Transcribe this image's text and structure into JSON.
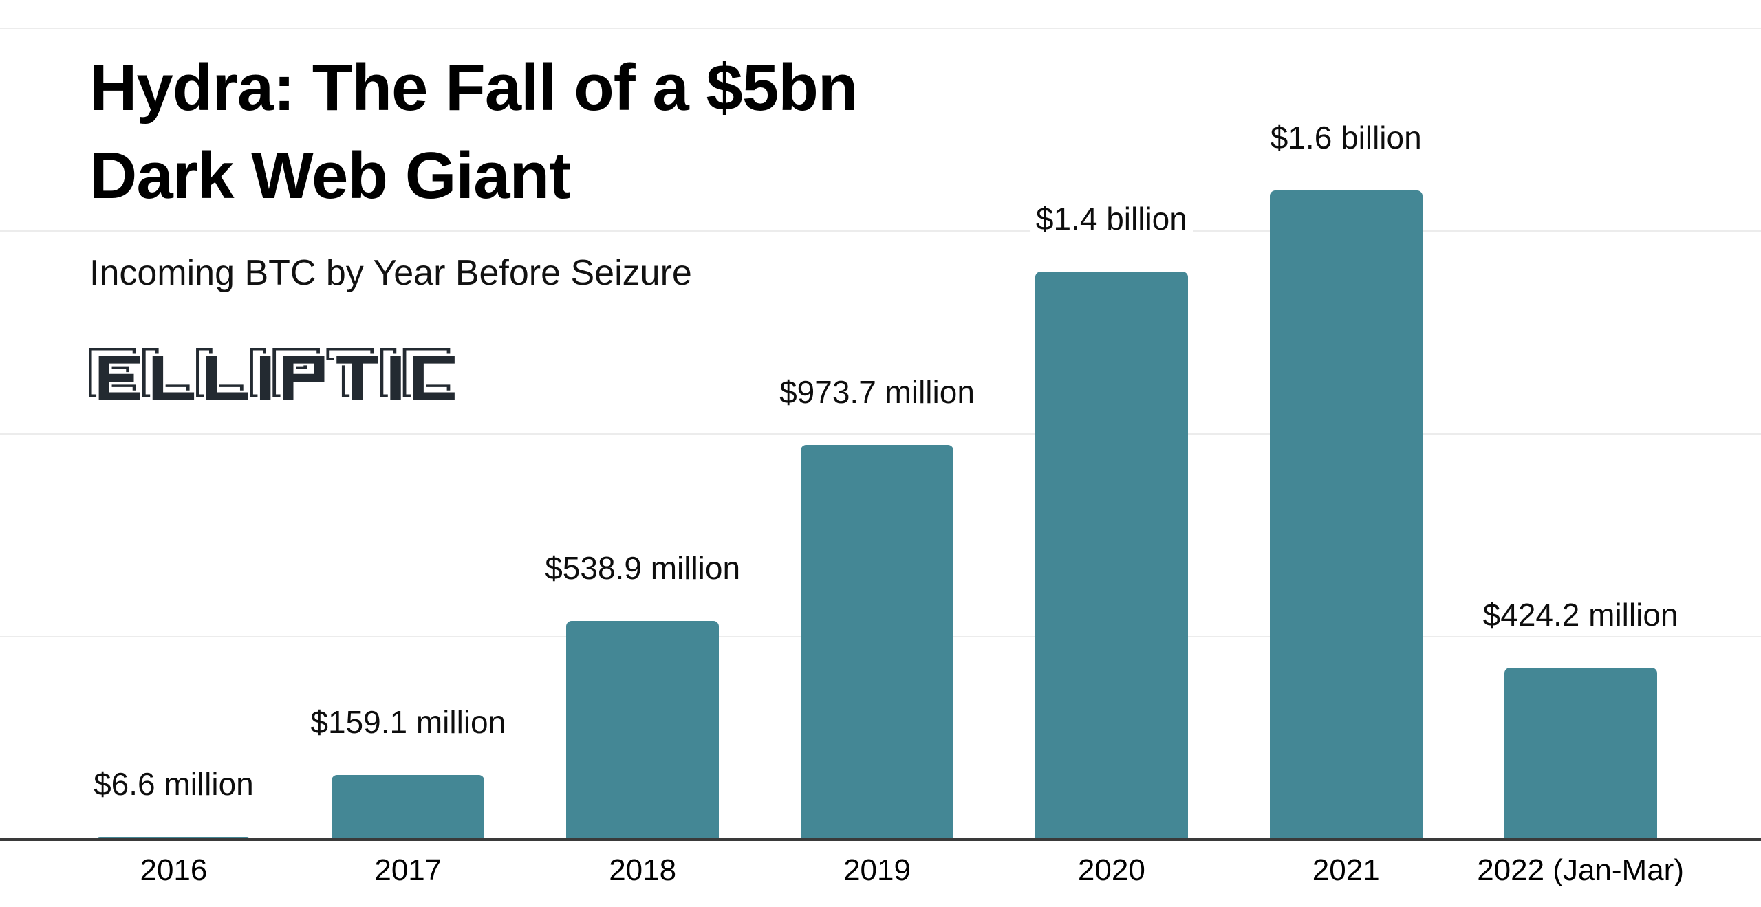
{
  "header": {
    "title_line1": "Hydra: The Fall of a $5bn",
    "title_line2": "Dark Web Giant",
    "subtitle": "Incoming BTC by Year Before Seizure",
    "logo_text": "ELLIPTIC"
  },
  "chart_data": {
    "type": "bar",
    "title": "Hydra: The Fall of a $5bn Dark Web Giant",
    "subtitle": "Incoming BTC by Year Before Seizure",
    "categories": [
      "2016",
      "2017",
      "2018",
      "2019",
      "2020",
      "2021",
      "2022 (Jan-Mar)"
    ],
    "values_usd_millions": [
      6.6,
      159.1,
      538.9,
      973.7,
      1400,
      1600,
      424.2
    ],
    "value_labels": [
      "$6.6 million",
      "$159.1 million",
      "$538.9 million",
      "$973.7 million",
      "$1.4 billion",
      "$1.6 billion",
      "$424.2 million"
    ],
    "xlabel": "",
    "ylabel": "",
    "ylim_usd_millions": [
      0,
      2000
    ],
    "gridlines_usd_millions": [
      500,
      1000,
      1500,
      2000
    ],
    "grid": "horizontal-only",
    "legend": "none",
    "bar_color": "#448795"
  },
  "colors": {
    "bar": "#448795",
    "axis": "#3a3a3a",
    "gridline": "#ececec",
    "text": "#0d0d0d",
    "logo": "#232a31",
    "background": "#ffffff"
  }
}
